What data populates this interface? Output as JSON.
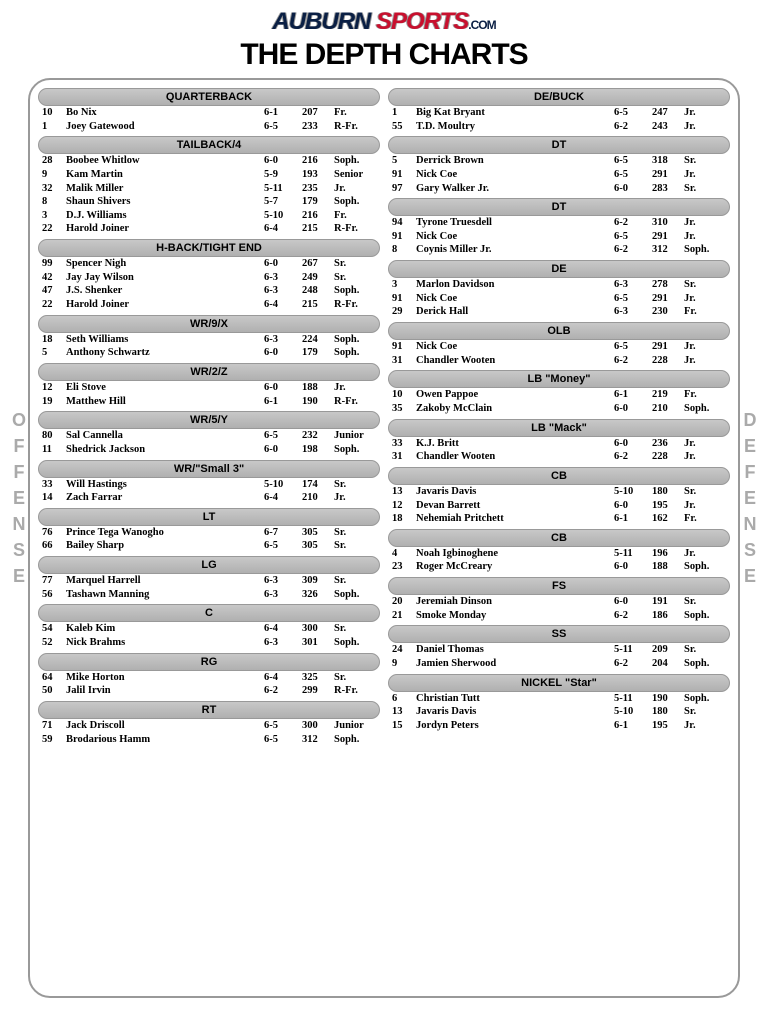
{
  "logo": {
    "part1": "AUBURN ",
    "part2": "SPORTS",
    "part3": ".COM"
  },
  "title": "THE DEPTH CHARTS",
  "side_labels": {
    "left": "OFFENSE",
    "right": "DEFENSE"
  },
  "offense": [
    {
      "title": "QUARTERBACK",
      "rows": [
        [
          "10",
          "Bo Nix",
          "6-1",
          "207",
          "Fr."
        ],
        [
          "1",
          "Joey Gatewood",
          "6-5",
          "233",
          "R-Fr."
        ]
      ]
    },
    {
      "title": "TAILBACK/4",
      "rows": [
        [
          "28",
          "Boobee Whitlow",
          "6-0",
          "216",
          "Soph."
        ],
        [
          "9",
          "Kam Martin",
          "5-9",
          "193",
          "Senior"
        ],
        [
          "32",
          "Malik Miller",
          "5-11",
          "235",
          "Jr."
        ],
        [
          "8",
          "Shaun Shivers",
          "5-7",
          "179",
          "Soph."
        ],
        [
          "3",
          "D.J. Williams",
          "5-10",
          "216",
          "Fr."
        ],
        [
          "22",
          "Harold Joiner",
          "6-4",
          "215",
          "R-Fr."
        ]
      ]
    },
    {
      "title": "H-BACK/TIGHT END",
      "rows": [
        [
          "99",
          "Spencer Nigh",
          "6-0",
          "267",
          "Sr."
        ],
        [
          "42",
          "Jay Jay Wilson",
          "6-3",
          "249",
          "Sr."
        ],
        [
          "47",
          "J.S. Shenker",
          "6-3",
          "248",
          "Soph."
        ],
        [
          "22",
          "Harold Joiner",
          "6-4",
          "215",
          "R-Fr."
        ]
      ]
    },
    {
      "title": "WR/9/X",
      "rows": [
        [
          "18",
          "Seth Williams",
          "6-3",
          "224",
          "Soph."
        ],
        [
          "5",
          "Anthony Schwartz",
          "6-0",
          "179",
          "Soph."
        ]
      ]
    },
    {
      "title": "WR/2/Z",
      "rows": [
        [
          "12",
          "Eli Stove",
          "6-0",
          "188",
          "Jr."
        ],
        [
          "19",
          "Matthew Hill",
          "6-1",
          "190",
          "R-Fr."
        ]
      ]
    },
    {
      "title": "WR/5/Y",
      "rows": [
        [
          "80",
          "Sal Cannella",
          "6-5",
          "232",
          "Junior"
        ],
        [
          "11",
          "Shedrick Jackson",
          "6-0",
          "198",
          "Soph."
        ]
      ]
    },
    {
      "title": "WR/\"Small 3\"",
      "rows": [
        [
          "33",
          "Will Hastings",
          "5-10",
          "174",
          "Sr."
        ],
        [
          "14",
          "Zach Farrar",
          "6-4",
          "210",
          "Jr."
        ]
      ]
    },
    {
      "title": "LT",
      "rows": [
        [
          "76",
          "Prince Tega Wanogho",
          "6-7",
          "305",
          "Sr."
        ],
        [
          "66",
          "Bailey Sharp",
          "6-5",
          "305",
          "Sr."
        ]
      ]
    },
    {
      "title": "LG",
      "rows": [
        [
          "77",
          "Marquel Harrell",
          "6-3",
          "309",
          "Sr."
        ],
        [
          "56",
          "Tashawn Manning",
          "6-3",
          "326",
          "Soph."
        ]
      ]
    },
    {
      "title": "C",
      "rows": [
        [
          "54",
          "Kaleb Kim",
          "6-4",
          "300",
          "Sr."
        ],
        [
          "52",
          "Nick Brahms",
          "6-3",
          "301",
          "Soph."
        ]
      ]
    },
    {
      "title": "RG",
      "rows": [
        [
          "64",
          "Mike Horton",
          "6-4",
          "325",
          "Sr."
        ],
        [
          "50",
          "Jalil Irvin",
          "6-2",
          "299",
          "R-Fr."
        ]
      ]
    },
    {
      "title": "RT",
      "rows": [
        [
          "71",
          "Jack Driscoll",
          "6-5",
          "300",
          "Junior"
        ],
        [
          "59",
          "Brodarious Hamm",
          "6-5",
          "312",
          "Soph."
        ]
      ]
    }
  ],
  "defense": [
    {
      "title": "DE/BUCK",
      "rows": [
        [
          "1",
          "Big Kat Bryant",
          "6-5",
          "247",
          "Jr."
        ],
        [
          "55",
          "T.D. Moultry",
          "6-2",
          "243",
          "Jr."
        ]
      ]
    },
    {
      "title": "DT",
      "rows": [
        [
          "5",
          "Derrick Brown",
          "6-5",
          "318",
          "Sr."
        ],
        [
          "91",
          "Nick Coe",
          "6-5",
          "291",
          "Jr."
        ],
        [
          "97",
          "Gary Walker Jr.",
          "6-0",
          "283",
          "Sr."
        ]
      ]
    },
    {
      "title": "DT",
      "rows": [
        [
          "94",
          "Tyrone Truesdell",
          "6-2",
          "310",
          "Jr."
        ],
        [
          "91",
          "Nick Coe",
          "6-5",
          "291",
          "Jr."
        ],
        [
          "8",
          "Coynis Miller Jr.",
          "6-2",
          "312",
          "Soph."
        ]
      ]
    },
    {
      "title": "DE",
      "rows": [
        [
          "3",
          "Marlon Davidson",
          "6-3",
          "278",
          "Sr."
        ],
        [
          "91",
          "Nick Coe",
          "6-5",
          "291",
          "Jr."
        ],
        [
          "29",
          "Derick Hall",
          "6-3",
          "230",
          "Fr."
        ]
      ]
    },
    {
      "title": "OLB",
      "rows": [
        [
          "91",
          "Nick Coe",
          "6-5",
          "291",
          "Jr."
        ],
        [
          "31",
          "Chandler Wooten",
          "6-2",
          "228",
          "Jr."
        ]
      ]
    },
    {
      "title": "LB \"Money\"",
      "rows": [
        [
          "10",
          "Owen Pappoe",
          "6-1",
          "219",
          "Fr."
        ],
        [
          "35",
          "Zakoby McClain",
          "6-0",
          "210",
          "Soph."
        ]
      ]
    },
    {
      "title": "LB \"Mack\"",
      "rows": [
        [
          "33",
          "K.J. Britt",
          "6-0",
          "236",
          "Jr."
        ],
        [
          "31",
          "Chandler Wooten",
          "6-2",
          "228",
          "Jr."
        ]
      ]
    },
    {
      "title": "CB",
      "rows": [
        [
          "13",
          "Javaris Davis",
          "5-10",
          "180",
          "Sr."
        ],
        [
          "12",
          "Devan Barrett",
          "6-0",
          "195",
          "Jr."
        ],
        [
          "18",
          "Nehemiah Pritchett",
          "6-1",
          "162",
          "Fr."
        ]
      ]
    },
    {
      "title": "CB",
      "rows": [
        [
          "4",
          "Noah Igbinoghene",
          "5-11",
          "196",
          "Jr."
        ],
        [
          "23",
          "Roger McCreary",
          "6-0",
          "188",
          "Soph."
        ]
      ]
    },
    {
      "title": "FS",
      "rows": [
        [
          "20",
          "Jeremiah Dinson",
          "6-0",
          "191",
          "Sr."
        ],
        [
          "21",
          "Smoke Monday",
          "6-2",
          "186",
          "Soph."
        ]
      ]
    },
    {
      "title": "SS",
      "rows": [
        [
          "24",
          "Daniel Thomas",
          "5-11",
          "209",
          "Sr."
        ],
        [
          "9",
          "Jamien Sherwood",
          "6-2",
          "204",
          "Soph."
        ]
      ]
    },
    {
      "title": "NICKEL \"Star\"",
      "rows": [
        [
          "6",
          "Christian Tutt",
          "5-11",
          "190",
          "Soph."
        ],
        [
          "13",
          "Javaris Davis",
          "5-10",
          "180",
          "Sr."
        ],
        [
          "15",
          "Jordyn Peters",
          "6-1",
          "195",
          "Jr."
        ]
      ]
    }
  ]
}
